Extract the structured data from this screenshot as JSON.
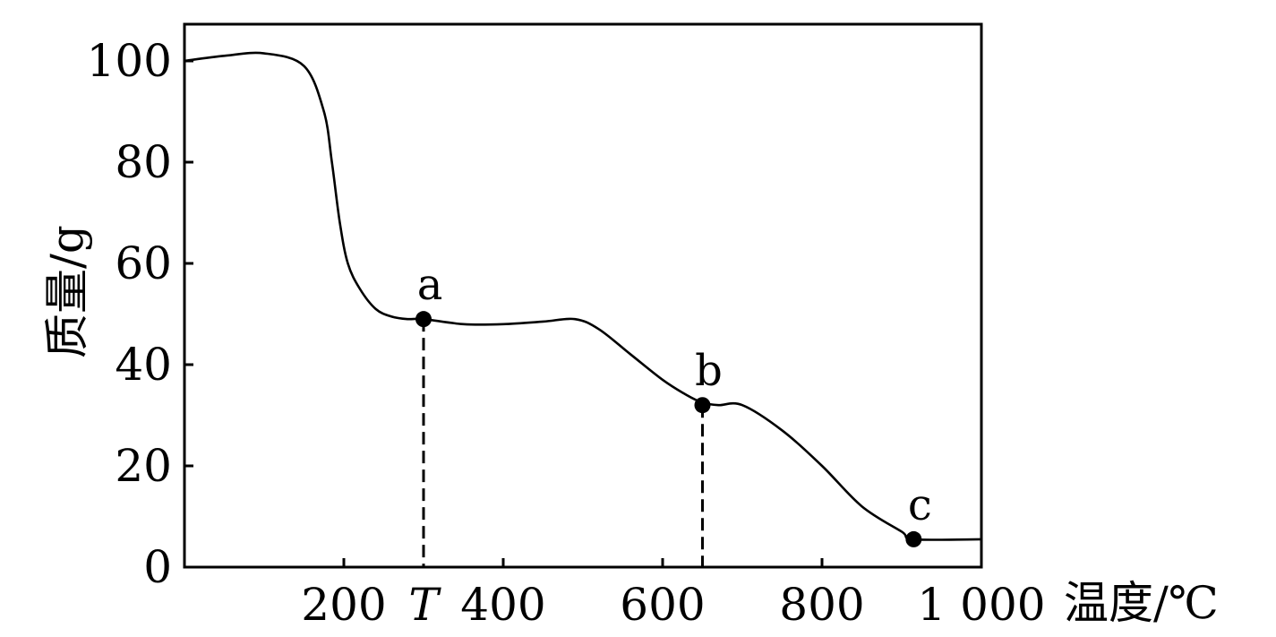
{
  "chart_data": {
    "type": "line",
    "xlabel": "温度/℃",
    "ylabel": "质量/g",
    "xlim": [
      0,
      1000
    ],
    "ylim": [
      0,
      107
    ],
    "x_ticks": [
      {
        "value": 200,
        "label": "200"
      },
      {
        "value": 300,
        "label": "T"
      },
      {
        "value": 400,
        "label": "400"
      },
      {
        "value": 600,
        "label": "600"
      },
      {
        "value": 800,
        "label": "800"
      },
      {
        "value": 1000,
        "label": "1 000"
      }
    ],
    "y_ticks": [
      {
        "value": 0,
        "label": "0"
      },
      {
        "value": 20,
        "label": "20"
      },
      {
        "value": 40,
        "label": "40"
      },
      {
        "value": 60,
        "label": "60"
      },
      {
        "value": 80,
        "label": "80"
      },
      {
        "value": 100,
        "label": "100"
      }
    ],
    "series": [
      {
        "x": [
          0,
          50,
          100,
          150,
          175,
          185,
          195,
          205,
          220,
          240,
          260,
          280,
          300,
          350,
          400,
          450,
          490,
          520,
          560,
          600,
          630,
          650,
          670,
          700,
          750,
          800,
          850,
          900,
          915,
          1000
        ],
        "y": [
          100,
          101,
          101.5,
          99,
          90,
          80,
          68,
          60,
          55,
          51,
          49.5,
          49,
          49,
          48,
          48,
          48.5,
          49,
          47,
          42,
          37,
          34,
          32.5,
          32,
          32,
          27,
          20,
          12,
          7,
          5.5,
          5.5
        ]
      }
    ],
    "points": [
      {
        "label": "a",
        "x": 300,
        "y": 49
      },
      {
        "label": "b",
        "x": 650,
        "y": 32
      },
      {
        "label": "c",
        "x": 915,
        "y": 5.5
      }
    ],
    "dashed_guides": [
      {
        "x": 300,
        "y": 49
      },
      {
        "x": 650,
        "y": 32
      }
    ],
    "grid": false,
    "legend": "none"
  }
}
